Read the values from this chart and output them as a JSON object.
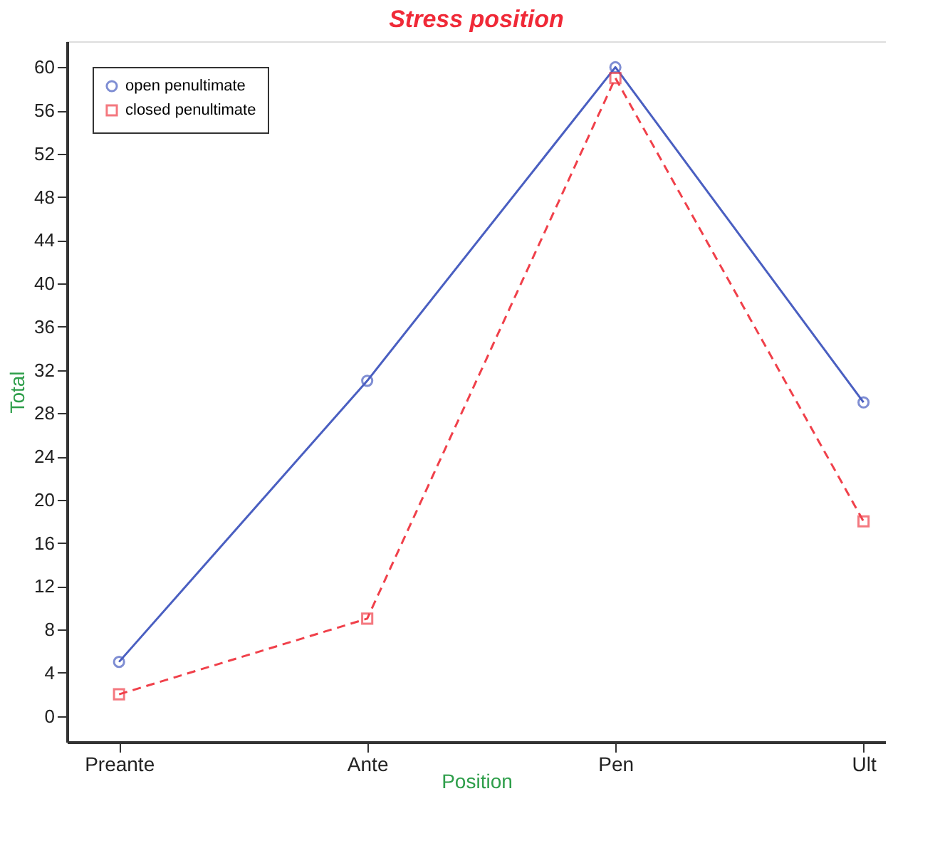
{
  "chart_data": {
    "type": "line",
    "title": "Stress position",
    "xlabel": "Position",
    "ylabel": "Total",
    "categories": [
      "Preante",
      "Ante",
      "Pen",
      "Ult"
    ],
    "series": [
      {
        "name": "open penultimate",
        "color": "#4a5fc1",
        "values": [
          5,
          31,
          60,
          29
        ],
        "marker": "circle",
        "line_style": "solid"
      },
      {
        "name": "closed penultimate",
        "color": "#f0404a",
        "values": [
          2,
          9,
          59,
          18
        ],
        "marker": "square",
        "line_style": "dashed"
      }
    ],
    "ylim": [
      -2.4,
      62.4
    ],
    "yticks": [
      0,
      4,
      8,
      12,
      16,
      20,
      24,
      28,
      32,
      36,
      40,
      44,
      48,
      52,
      56,
      60
    ],
    "grid": false,
    "legend": "top left"
  }
}
